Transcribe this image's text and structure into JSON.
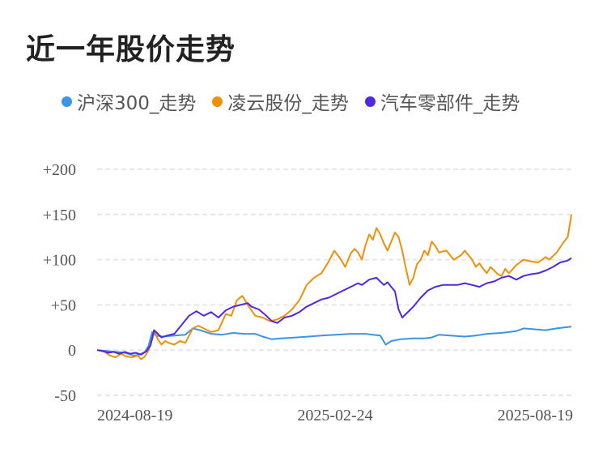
{
  "title": "近一年股价走势",
  "chart_data": {
    "type": "line",
    "title": "近一年股价走势",
    "xlabel": "",
    "ylabel": "",
    "x_ticks": [
      "2024-08-19",
      "2025-02-24",
      "2025-08-19"
    ],
    "y_ticks": [
      "+200",
      "+150",
      "+100",
      "+50",
      "0",
      "-50"
    ],
    "y_tick_values": [
      200,
      150,
      100,
      50,
      0,
      -50
    ],
    "ylim": [
      -50,
      200
    ],
    "xlim": [
      0,
      258
    ],
    "grid": true,
    "legend_position": "top",
    "series": [
      {
        "name": "沪深300_走势",
        "color": "#3a95e6",
        "points": [
          [
            0,
            0
          ],
          [
            5,
            -1
          ],
          [
            10,
            -2
          ],
          [
            15,
            -3
          ],
          [
            20,
            -6
          ],
          [
            23,
            -5
          ],
          [
            26,
            -2
          ],
          [
            28,
            5
          ],
          [
            30,
            20
          ],
          [
            32,
            16
          ],
          [
            36,
            15
          ],
          [
            42,
            16
          ],
          [
            48,
            17
          ],
          [
            52,
            24
          ],
          [
            56,
            22
          ],
          [
            62,
            18
          ],
          [
            68,
            17
          ],
          [
            74,
            19
          ],
          [
            80,
            18
          ],
          [
            86,
            18
          ],
          [
            90,
            15
          ],
          [
            95,
            12
          ],
          [
            100,
            13
          ],
          [
            108,
            14
          ],
          [
            115,
            15
          ],
          [
            122,
            16
          ],
          [
            130,
            17
          ],
          [
            138,
            18
          ],
          [
            146,
            18
          ],
          [
            150,
            17
          ],
          [
            154,
            16
          ],
          [
            157,
            6
          ],
          [
            160,
            10
          ],
          [
            165,
            12
          ],
          [
            172,
            13
          ],
          [
            178,
            13
          ],
          [
            182,
            14
          ],
          [
            186,
            17
          ],
          [
            192,
            16
          ],
          [
            200,
            15
          ],
          [
            206,
            16
          ],
          [
            212,
            18
          ],
          [
            220,
            19
          ],
          [
            228,
            21
          ],
          [
            232,
            24
          ],
          [
            238,
            23
          ],
          [
            244,
            22
          ],
          [
            250,
            24
          ],
          [
            254,
            25
          ],
          [
            258,
            26
          ]
        ]
      },
      {
        "name": "凌云股份_走势",
        "color": "#f0900a",
        "points": [
          [
            0,
            0
          ],
          [
            4,
            -2
          ],
          [
            7,
            -6
          ],
          [
            10,
            -8
          ],
          [
            13,
            -4
          ],
          [
            16,
            -7
          ],
          [
            19,
            -8
          ],
          [
            22,
            -6
          ],
          [
            24,
            -10
          ],
          [
            26,
            -7
          ],
          [
            28,
            0
          ],
          [
            30,
            12
          ],
          [
            31,
            22
          ],
          [
            33,
            12
          ],
          [
            35,
            6
          ],
          [
            37,
            10
          ],
          [
            39,
            8
          ],
          [
            42,
            6
          ],
          [
            45,
            10
          ],
          [
            48,
            8
          ],
          [
            52,
            24
          ],
          [
            55,
            27
          ],
          [
            58,
            24
          ],
          [
            62,
            20
          ],
          [
            66,
            22
          ],
          [
            70,
            40
          ],
          [
            73,
            38
          ],
          [
            76,
            55
          ],
          [
            79,
            60
          ],
          [
            82,
            50
          ],
          [
            86,
            38
          ],
          [
            90,
            36
          ],
          [
            94,
            32
          ],
          [
            98,
            34
          ],
          [
            102,
            38
          ],
          [
            106,
            45
          ],
          [
            110,
            55
          ],
          [
            114,
            72
          ],
          [
            118,
            80
          ],
          [
            122,
            85
          ],
          [
            126,
            98
          ],
          [
            129,
            110
          ],
          [
            132,
            102
          ],
          [
            135,
            92
          ],
          [
            138,
            107
          ],
          [
            140,
            112
          ],
          [
            142,
            108
          ],
          [
            144,
            100
          ],
          [
            146,
            116
          ],
          [
            148,
            128
          ],
          [
            150,
            122
          ],
          [
            152,
            135
          ],
          [
            154,
            128
          ],
          [
            156,
            118
          ],
          [
            158,
            110
          ],
          [
            160,
            120
          ],
          [
            162,
            130
          ],
          [
            164,
            125
          ],
          [
            166,
            110
          ],
          [
            168,
            90
          ],
          [
            170,
            72
          ],
          [
            172,
            80
          ],
          [
            174,
            95
          ],
          [
            176,
            100
          ],
          [
            178,
            110
          ],
          [
            180,
            105
          ],
          [
            182,
            120
          ],
          [
            184,
            115
          ],
          [
            186,
            108
          ],
          [
            190,
            110
          ],
          [
            194,
            100
          ],
          [
            198,
            105
          ],
          [
            200,
            110
          ],
          [
            204,
            100
          ],
          [
            206,
            92
          ],
          [
            208,
            96
          ],
          [
            210,
            90
          ],
          [
            212,
            85
          ],
          [
            214,
            92
          ],
          [
            216,
            88
          ],
          [
            218,
            84
          ],
          [
            220,
            82
          ],
          [
            222,
            90
          ],
          [
            224,
            85
          ],
          [
            228,
            94
          ],
          [
            232,
            100
          ],
          [
            236,
            98
          ],
          [
            240,
            97
          ],
          [
            244,
            103
          ],
          [
            246,
            100
          ],
          [
            250,
            108
          ],
          [
            254,
            120
          ],
          [
            256,
            125
          ],
          [
            258,
            150
          ]
        ]
      },
      {
        "name": "汽车零部件_走势",
        "color": "#5227e0",
        "points": [
          [
            0,
            0
          ],
          [
            3,
            -1
          ],
          [
            6,
            -3
          ],
          [
            9,
            -2
          ],
          [
            12,
            -4
          ],
          [
            15,
            -2
          ],
          [
            18,
            -4
          ],
          [
            21,
            -3
          ],
          [
            24,
            -5
          ],
          [
            27,
            -1
          ],
          [
            29,
            5
          ],
          [
            31,
            22
          ],
          [
            33,
            18
          ],
          [
            35,
            14
          ],
          [
            38,
            16
          ],
          [
            42,
            18
          ],
          [
            46,
            28
          ],
          [
            50,
            38
          ],
          [
            54,
            43
          ],
          [
            58,
            38
          ],
          [
            62,
            42
          ],
          [
            66,
            36
          ],
          [
            70,
            44
          ],
          [
            74,
            48
          ],
          [
            78,
            50
          ],
          [
            82,
            52
          ],
          [
            84,
            48
          ],
          [
            88,
            45
          ],
          [
            92,
            38
          ],
          [
            95,
            32
          ],
          [
            98,
            30
          ],
          [
            102,
            36
          ],
          [
            106,
            38
          ],
          [
            110,
            42
          ],
          [
            114,
            48
          ],
          [
            118,
            52
          ],
          [
            122,
            56
          ],
          [
            126,
            58
          ],
          [
            130,
            62
          ],
          [
            134,
            66
          ],
          [
            138,
            70
          ],
          [
            142,
            74
          ],
          [
            144,
            72
          ],
          [
            148,
            78
          ],
          [
            152,
            80
          ],
          [
            156,
            72
          ],
          [
            158,
            75
          ],
          [
            160,
            70
          ],
          [
            162,
            65
          ],
          [
            164,
            45
          ],
          [
            166,
            36
          ],
          [
            168,
            40
          ],
          [
            172,
            48
          ],
          [
            176,
            58
          ],
          [
            180,
            66
          ],
          [
            184,
            70
          ],
          [
            188,
            72
          ],
          [
            192,
            72
          ],
          [
            196,
            72
          ],
          [
            200,
            74
          ],
          [
            204,
            72
          ],
          [
            208,
            70
          ],
          [
            212,
            74
          ],
          [
            216,
            76
          ],
          [
            220,
            80
          ],
          [
            224,
            82
          ],
          [
            228,
            78
          ],
          [
            232,
            82
          ],
          [
            236,
            84
          ],
          [
            240,
            85
          ],
          [
            244,
            88
          ],
          [
            248,
            92
          ],
          [
            252,
            97
          ],
          [
            256,
            99
          ],
          [
            258,
            102
          ]
        ]
      }
    ]
  }
}
